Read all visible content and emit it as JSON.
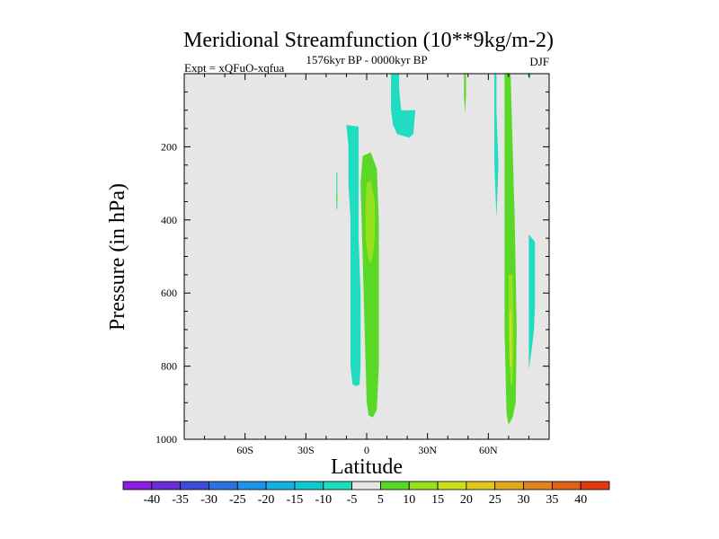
{
  "chart_data": {
    "type": "contour",
    "title": "Meridional Streamfunction (10**9kg/m-2)",
    "left_string": "Expt = xQFuO-xqfua",
    "center_string": "1576kyr BP - 0000kyr BP",
    "right_string": "DJF",
    "xlabel": "Latitude",
    "ylabel": "Pressure (in hPa)",
    "xlim": [
      -90,
      90
    ],
    "ylim": [
      1000,
      0
    ],
    "x_ticks": [
      {
        "value": -60,
        "label": "60S"
      },
      {
        "value": -30,
        "label": "30S"
      },
      {
        "value": 0,
        "label": "0"
      },
      {
        "value": 30,
        "label": "30N"
      },
      {
        "value": 60,
        "label": "60N"
      }
    ],
    "y_ticks": [
      {
        "value": 200,
        "label": "200"
      },
      {
        "value": 400,
        "label": "400"
      },
      {
        "value": 600,
        "label": "600"
      },
      {
        "value": 800,
        "label": "800"
      },
      {
        "value": 1000,
        "label": "1000"
      }
    ],
    "background_color": "#e6e6e6",
    "colorbar": {
      "colors": [
        "#8a1ee0",
        "#6a2ed8",
        "#3c4ed8",
        "#2a72e0",
        "#1e94e8",
        "#14b0e0",
        "#10c8d0",
        "#20dcc0",
        "#e6e6e6",
        "#5ad828",
        "#96e01e",
        "#c8e01e",
        "#e0c81e",
        "#e0a81e",
        "#e0841e",
        "#e06018",
        "#e03a0e"
      ],
      "labels": [
        "-40",
        "-35",
        "-30",
        "-25",
        "-20",
        "-15",
        "-10",
        "-5",
        "5",
        "10",
        "15",
        "20",
        "25",
        "30",
        "35",
        "40"
      ]
    },
    "contour_regions": [
      {
        "level": "-5 to 5 (negative side)",
        "color": "#20dcc0",
        "polygon": [
          [
            12,
            0
          ],
          [
            16,
            0
          ],
          [
            16,
            40
          ],
          [
            17,
            100
          ],
          [
            24,
            100
          ],
          [
            23,
            165
          ],
          [
            21,
            175
          ],
          [
            15,
            165
          ],
          [
            13,
            140
          ],
          [
            12,
            100
          ]
        ]
      },
      {
        "level": "-5 to 5 (negative side)",
        "color": "#20dcc0",
        "polygon": [
          [
            -10,
            140
          ],
          [
            -4,
            145
          ],
          [
            -4,
            450
          ],
          [
            -3,
            600
          ],
          [
            -3,
            800
          ],
          [
            -3.5,
            850
          ],
          [
            -5,
            855
          ],
          [
            -7,
            850
          ],
          [
            -8,
            800
          ],
          [
            -8,
            400
          ],
          [
            -9,
            300
          ],
          [
            -9,
            200
          ]
        ]
      },
      {
        "level": "-5 to 5 (negative side)",
        "color": "#20dcc0",
        "polygon": [
          [
            -15,
            270
          ],
          [
            -14.5,
            270
          ],
          [
            -14.5,
            370
          ],
          [
            -15,
            370
          ]
        ]
      },
      {
        "level": "-5 to 5 (negative side)",
        "color": "#20dcc0",
        "polygon": [
          [
            63,
            0
          ],
          [
            64,
            0
          ],
          [
            64,
            100
          ],
          [
            65,
            250
          ],
          [
            64,
            395
          ],
          [
            63,
            250
          ],
          [
            63,
            100
          ]
        ]
      },
      {
        "level": "-5 to 5 (negative side)",
        "color": "#20dcc0",
        "polygon": [
          [
            80,
            0
          ],
          [
            81,
            0
          ],
          [
            80.5,
            15
          ],
          [
            80,
            10
          ]
        ]
      },
      {
        "level": "-5 to 5 (negative side)",
        "color": "#20dcc0",
        "polygon": [
          [
            80,
            440
          ],
          [
            83,
            460
          ],
          [
            83,
            640
          ],
          [
            82.5,
            700
          ],
          [
            81.5,
            750
          ],
          [
            80,
            810
          ],
          [
            80,
            600
          ]
        ]
      },
      {
        "level": "5 to 10",
        "color": "#5ad828",
        "polygon": [
          [
            -2,
            225
          ],
          [
            2,
            215
          ],
          [
            5,
            260
          ],
          [
            6,
            400
          ],
          [
            6,
            600
          ],
          [
            6,
            800
          ],
          [
            5,
            920
          ],
          [
            3,
            940
          ],
          [
            1,
            935
          ],
          [
            0,
            900
          ],
          [
            -1,
            700
          ],
          [
            -2,
            500
          ],
          [
            -3,
            300
          ]
        ]
      },
      {
        "level": "5 to 10",
        "color": "#5ad828",
        "polygon": [
          [
            68,
            0
          ],
          [
            71,
            0
          ],
          [
            72,
            200
          ],
          [
            73,
            400
          ],
          [
            74,
            700
          ],
          [
            73.5,
            900
          ],
          [
            72,
            940
          ],
          [
            70,
            960
          ],
          [
            69,
            930
          ],
          [
            68,
            700
          ],
          [
            68,
            400
          ],
          [
            68,
            100
          ]
        ]
      },
      {
        "level": "5 to 10",
        "color": "#5ad828",
        "polygon": [
          [
            -15,
            330
          ],
          [
            -14.5,
            330
          ],
          [
            -14.5,
            350
          ],
          [
            -15,
            352
          ]
        ]
      },
      {
        "level": "5 to 10",
        "color": "#5ad828",
        "polygon": [
          [
            48,
            0
          ],
          [
            49,
            0
          ],
          [
            49,
            60
          ],
          [
            48.5,
            110
          ],
          [
            48,
            60
          ]
        ]
      },
      {
        "level": "10 to 15",
        "color": "#96e01e",
        "polygon": [
          [
            0,
            300
          ],
          [
            2,
            290
          ],
          [
            4,
            350
          ],
          [
            4,
            450
          ],
          [
            3,
            500
          ],
          [
            2,
            520
          ],
          [
            0.5,
            500
          ],
          [
            -0.5,
            450
          ],
          [
            -0.5,
            350
          ]
        ]
      },
      {
        "level": "10 to 15",
        "color": "#96e01e",
        "polygon": [
          [
            70,
            550
          ],
          [
            72,
            550
          ],
          [
            72.5,
            700
          ],
          [
            72,
            850
          ],
          [
            71,
            850
          ],
          [
            70,
            700
          ]
        ]
      },
      {
        "level": "15 to 20",
        "color": "#c8e01e",
        "polygon": [
          [
            70.5,
            650
          ],
          [
            71.5,
            650
          ],
          [
            71.5,
            800
          ],
          [
            70.5,
            800
          ]
        ]
      }
    ]
  }
}
